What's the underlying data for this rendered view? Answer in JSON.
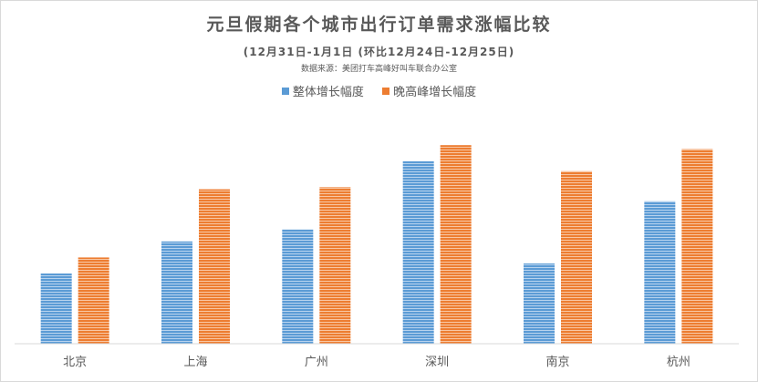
{
  "chart_data": {
    "type": "bar",
    "title": "元旦假期各个城市出行订单需求涨幅比较",
    "subtitle": "(12月31日-1月1日 (环比12月24日-12月25日)",
    "source": "数据来源：美团打车高峰好叫车联合办公室",
    "categories": [
      "北京",
      "上海",
      "广州",
      "深圳",
      "南京",
      "杭州"
    ],
    "series": [
      {
        "name": "整体增长幅度",
        "color": "#5b9bd5",
        "values": [
          35,
          51,
          57,
          91,
          40,
          71
        ]
      },
      {
        "name": "晚高峰增长幅度",
        "color": "#ed7d31",
        "values": [
          43,
          77,
          78,
          99,
          86,
          97
        ]
      }
    ],
    "ylim": [
      0,
      100
    ],
    "grid": false,
    "legend": "top-center"
  }
}
